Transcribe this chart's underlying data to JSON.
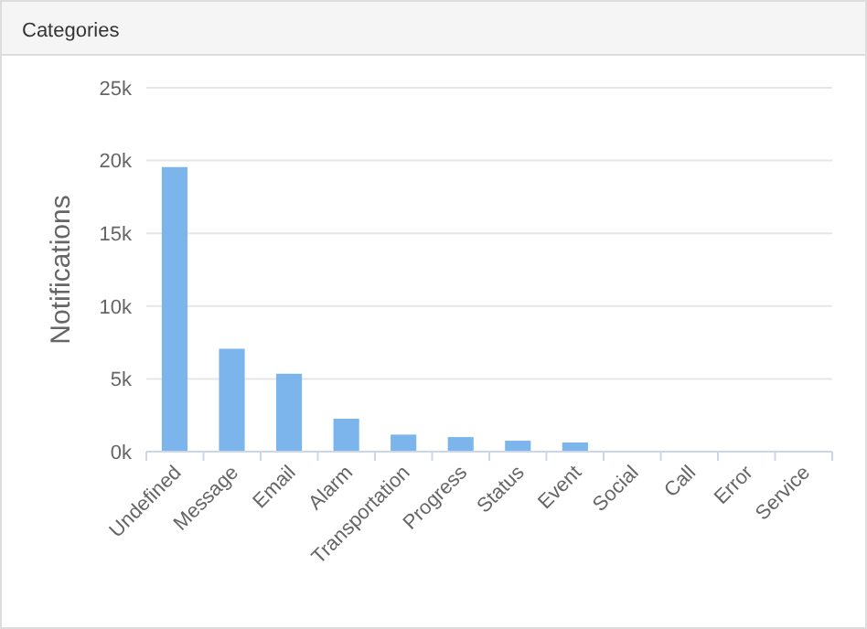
{
  "chart_data": {
    "type": "bar",
    "title": "Categories",
    "ylabel": "Notifications",
    "categories": [
      "Undefined",
      "Message",
      "Email",
      "Alarm",
      "Transportation",
      "Progress",
      "Status",
      "Event",
      "Social",
      "Call",
      "Error",
      "Service"
    ],
    "values": [
      19550,
      7070,
      5350,
      2260,
      1170,
      1000,
      750,
      630,
      0,
      0,
      0,
      0
    ],
    "color": "#7cb5ec",
    "ylim": [
      0,
      25000
    ],
    "yticks": [
      {
        "value": 0,
        "label": "0k"
      },
      {
        "value": 5000,
        "label": "5k"
      },
      {
        "value": 10000,
        "label": "10k"
      },
      {
        "value": 15000,
        "label": "15k"
      },
      {
        "value": 20000,
        "label": "20k"
      },
      {
        "value": 25000,
        "label": "25k"
      }
    ],
    "grid": "y"
  }
}
